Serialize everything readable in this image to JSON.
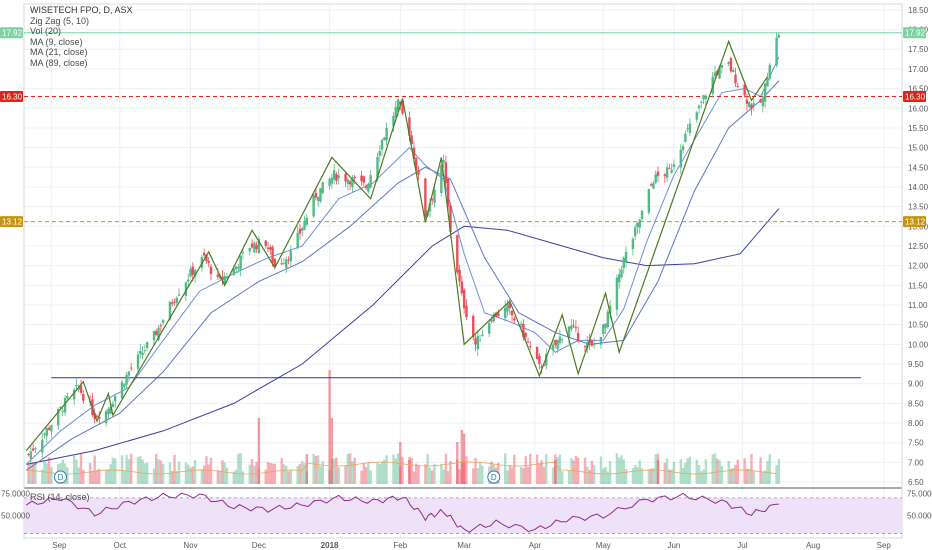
{
  "legend": {
    "title": "WISETECH FPO, D, ASX",
    "lines": [
      "Zig Zag (5, 10)",
      "Vol (20)",
      "MA (9, close)",
      "MA (21, close)",
      "MA (89, close)"
    ],
    "rsi": "RSI (14, close)"
  },
  "colors": {
    "up": "#53b987",
    "down": "#eb4d5c",
    "zigzag": "#4d7a1f",
    "ma9": "#6f8fd8",
    "ma21": "#5f74c8",
    "ma89": "#3c3f9e",
    "support": "#2a36a4",
    "resistance": "#e0241a",
    "mid": "#c79410",
    "current": "#7dd3a4",
    "rsi": "#8e2e8c",
    "rsi_band": "#efe1f7",
    "vol_ma": "#f2a25a"
  },
  "chart_data": {
    "type": "candlestick",
    "title": "WISETECH FPO, D, ASX",
    "price_axis": {
      "ylim": [
        6.4,
        18.65
      ],
      "ticks": [
        "6.50",
        "7.00",
        "7.50",
        "8.00",
        "8.50",
        "9.00",
        "9.50",
        "10.00",
        "10.50",
        "11.00",
        "11.50",
        "12.00",
        "12.50",
        "13.00",
        "13.50",
        "14.00",
        "14.50",
        "15.00",
        "15.50",
        "16.00",
        "16.50",
        "17.00",
        "17.50",
        "18.00",
        "18.50"
      ]
    },
    "time_axis": {
      "labels": [
        "Sep",
        "Oct",
        "Nov",
        "Dec",
        "2018",
        "Feb",
        "Mar",
        "Apr",
        "May",
        "Jun",
        "Jul",
        "Aug",
        "Sep"
      ],
      "label_dates": [
        "2017-09-01",
        "2017-10-01",
        "2017-11-01",
        "2017-12-01",
        "2018-01-01",
        "2018-02-01",
        "2018-03-01",
        "2018-04-01",
        "2018-05-01",
        "2018-06-01",
        "2018-07-01",
        "2018-08-01",
        "2018-09-01"
      ]
    },
    "horizontal_lines": [
      {
        "label": "17.92",
        "value": 17.92,
        "style": "solid",
        "kind": "current"
      },
      {
        "label": "16.30",
        "value": 16.3,
        "style": "dashed",
        "kind": "resistance"
      },
      {
        "label": "13.12",
        "value": 13.12,
        "style": "dashed",
        "kind": "mid"
      },
      {
        "value": 9.15,
        "style": "solid",
        "kind": "support",
        "from": "2017-09-01",
        "to": "2018-08-22"
      }
    ],
    "close_path": [
      {
        "d": "2017-08-22",
        "c": 7.2
      },
      {
        "d": "2017-08-31",
        "c": 7.9
      },
      {
        "d": "2017-09-08",
        "c": 8.6
      },
      {
        "d": "2017-09-13",
        "c": 8.9
      },
      {
        "d": "2017-09-20",
        "c": 8.2
      },
      {
        "d": "2017-09-25",
        "c": 8.3
      },
      {
        "d": "2017-10-06",
        "c": 9.4
      },
      {
        "d": "2017-10-16",
        "c": 10.2
      },
      {
        "d": "2017-10-25",
        "c": 11.2
      },
      {
        "d": "2017-11-01",
        "c": 11.8
      },
      {
        "d": "2017-11-07",
        "c": 12.2
      },
      {
        "d": "2017-11-13",
        "c": 11.6
      },
      {
        "d": "2017-11-20",
        "c": 11.9
      },
      {
        "d": "2017-11-27",
        "c": 12.5
      },
      {
        "d": "2017-12-04",
        "c": 12.6
      },
      {
        "d": "2017-12-08",
        "c": 12.0
      },
      {
        "d": "2017-12-15",
        "c": 12.3
      },
      {
        "d": "2017-12-26",
        "c": 13.8
      },
      {
        "d": "2018-01-03",
        "c": 14.3
      },
      {
        "d": "2018-01-10",
        "c": 14.2
      },
      {
        "d": "2018-01-17",
        "c": 14.0
      },
      {
        "d": "2018-01-24",
        "c": 15.2
      },
      {
        "d": "2018-01-31",
        "c": 16.1
      },
      {
        "d": "2018-02-05",
        "c": 15.4
      },
      {
        "d": "2018-02-12",
        "c": 13.3
      },
      {
        "d": "2018-02-20",
        "c": 14.6
      },
      {
        "d": "2018-02-23",
        "c": 12.9
      },
      {
        "d": "2018-02-28",
        "c": 11.2
      },
      {
        "d": "2018-03-06",
        "c": 10.0
      },
      {
        "d": "2018-03-13",
        "c": 10.7
      },
      {
        "d": "2018-03-20",
        "c": 10.9
      },
      {
        "d": "2018-03-26",
        "c": 10.4
      },
      {
        "d": "2018-04-03",
        "c": 9.4
      },
      {
        "d": "2018-04-09",
        "c": 9.9
      },
      {
        "d": "2018-04-16",
        "c": 10.5
      },
      {
        "d": "2018-04-20",
        "c": 10.2
      },
      {
        "d": "2018-04-26",
        "c": 9.9
      },
      {
        "d": "2018-05-02",
        "c": 10.5
      },
      {
        "d": "2018-05-09",
        "c": 12.0
      },
      {
        "d": "2018-05-16",
        "c": 13.0
      },
      {
        "d": "2018-05-23",
        "c": 14.2
      },
      {
        "d": "2018-05-30",
        "c": 14.4
      },
      {
        "d": "2018-06-06",
        "c": 15.3
      },
      {
        "d": "2018-06-12",
        "c": 16.0
      },
      {
        "d": "2018-06-19",
        "c": 16.9
      },
      {
        "d": "2018-06-25",
        "c": 17.1
      },
      {
        "d": "2018-07-02",
        "c": 16.3
      },
      {
        "d": "2018-07-06",
        "c": 16.0
      },
      {
        "d": "2018-07-10",
        "c": 16.2
      },
      {
        "d": "2018-07-13",
        "c": 17.2
      },
      {
        "d": "2018-07-17",
        "c": 17.92
      }
    ],
    "zigzag": [
      {
        "d": "2017-08-21",
        "v": 7.3
      },
      {
        "d": "2017-09-15",
        "v": 9.05
      },
      {
        "d": "2017-09-21",
        "v": 8.05
      },
      {
        "d": "2017-09-26",
        "v": 8.75
      },
      {
        "d": "2017-09-28",
        "v": 8.2
      },
      {
        "d": "2017-11-09",
        "v": 12.35
      },
      {
        "d": "2017-11-16",
        "v": 11.5
      },
      {
        "d": "2017-11-28",
        "v": 12.9
      },
      {
        "d": "2017-12-08",
        "v": 11.95
      },
      {
        "d": "2018-01-02",
        "v": 14.75
      },
      {
        "d": "2018-01-19",
        "v": 13.7
      },
      {
        "d": "2018-02-02",
        "v": 16.25
      },
      {
        "d": "2018-02-12",
        "v": 13.1
      },
      {
        "d": "2018-02-19",
        "v": 14.75
      },
      {
        "d": "2018-03-01",
        "v": 10.0
      },
      {
        "d": "2018-03-21",
        "v": 11.1
      },
      {
        "d": "2018-04-03",
        "v": 9.2
      },
      {
        "d": "2018-04-13",
        "v": 10.75
      },
      {
        "d": "2018-04-20",
        "v": 9.25
      },
      {
        "d": "2018-05-02",
        "v": 11.3
      },
      {
        "d": "2018-05-08",
        "v": 9.8
      },
      {
        "d": "2018-06-25",
        "v": 17.7
      },
      {
        "d": "2018-07-05",
        "v": 16.2
      },
      {
        "d": "2018-07-12",
        "v": 16.8
      }
    ],
    "ma9": [
      {
        "d": "2017-08-21",
        "v": 6.95
      },
      {
        "d": "2017-09-05",
        "v": 7.8
      },
      {
        "d": "2017-09-20",
        "v": 8.45
      },
      {
        "d": "2017-10-05",
        "v": 8.9
      },
      {
        "d": "2017-10-20",
        "v": 10.1
      },
      {
        "d": "2017-11-05",
        "v": 11.35
      },
      {
        "d": "2017-11-20",
        "v": 11.8
      },
      {
        "d": "2017-12-05",
        "v": 12.2
      },
      {
        "d": "2017-12-20",
        "v": 12.5
      },
      {
        "d": "2018-01-05",
        "v": 13.7
      },
      {
        "d": "2018-01-20",
        "v": 14.1
      },
      {
        "d": "2018-02-05",
        "v": 15.0
      },
      {
        "d": "2018-02-12",
        "v": 14.55
      },
      {
        "d": "2018-02-20",
        "v": 14.2
      },
      {
        "d": "2018-03-01",
        "v": 12.3
      },
      {
        "d": "2018-03-10",
        "v": 10.8
      },
      {
        "d": "2018-03-20",
        "v": 10.6
      },
      {
        "d": "2018-04-01",
        "v": 10.3
      },
      {
        "d": "2018-04-10",
        "v": 9.8
      },
      {
        "d": "2018-04-20",
        "v": 10.1
      },
      {
        "d": "2018-05-01",
        "v": 10.1
      },
      {
        "d": "2018-05-10",
        "v": 10.9
      },
      {
        "d": "2018-05-20",
        "v": 12.6
      },
      {
        "d": "2018-06-01",
        "v": 14.3
      },
      {
        "d": "2018-06-12",
        "v": 15.4
      },
      {
        "d": "2018-06-22",
        "v": 16.4
      },
      {
        "d": "2018-07-02",
        "v": 16.5
      },
      {
        "d": "2018-07-09",
        "v": 16.3
      },
      {
        "d": "2018-07-17",
        "v": 17.3
      }
    ],
    "ma21": [
      {
        "d": "2017-08-21",
        "v": 6.8
      },
      {
        "d": "2017-09-10",
        "v": 7.6
      },
      {
        "d": "2017-10-01",
        "v": 8.25
      },
      {
        "d": "2017-10-20",
        "v": 9.3
      },
      {
        "d": "2017-11-10",
        "v": 10.8
      },
      {
        "d": "2017-12-01",
        "v": 11.6
      },
      {
        "d": "2017-12-20",
        "v": 12.1
      },
      {
        "d": "2018-01-10",
        "v": 13.0
      },
      {
        "d": "2018-01-31",
        "v": 14.1
      },
      {
        "d": "2018-02-12",
        "v": 14.5
      },
      {
        "d": "2018-02-23",
        "v": 14.2
      },
      {
        "d": "2018-03-10",
        "v": 12.2
      },
      {
        "d": "2018-03-25",
        "v": 10.8
      },
      {
        "d": "2018-04-10",
        "v": 10.3
      },
      {
        "d": "2018-04-25",
        "v": 10.0
      },
      {
        "d": "2018-05-10",
        "v": 10.1
      },
      {
        "d": "2018-05-25",
        "v": 11.6
      },
      {
        "d": "2018-06-10",
        "v": 13.9
      },
      {
        "d": "2018-06-25",
        "v": 15.5
      },
      {
        "d": "2018-07-09",
        "v": 16.2
      },
      {
        "d": "2018-07-17",
        "v": 16.7
      }
    ],
    "ma89": [
      {
        "d": "2017-08-21",
        "v": 6.95
      },
      {
        "d": "2017-09-20",
        "v": 7.3
      },
      {
        "d": "2017-10-20",
        "v": 7.8
      },
      {
        "d": "2017-11-20",
        "v": 8.5
      },
      {
        "d": "2017-12-20",
        "v": 9.5
      },
      {
        "d": "2018-01-20",
        "v": 11.0
      },
      {
        "d": "2018-02-15",
        "v": 12.5
      },
      {
        "d": "2018-03-01",
        "v": 13.0
      },
      {
        "d": "2018-03-20",
        "v": 12.9
      },
      {
        "d": "2018-04-10",
        "v": 12.55
      },
      {
        "d": "2018-05-01",
        "v": 12.2
      },
      {
        "d": "2018-05-20",
        "v": 12.0
      },
      {
        "d": "2018-06-10",
        "v": 12.05
      },
      {
        "d": "2018-06-30",
        "v": 12.3
      },
      {
        "d": "2018-07-17",
        "v": 13.45
      }
    ],
    "volume_spikes": [
      {
        "d": "2017-12-01",
        "v": 0.55
      },
      {
        "d": "2018-01-01",
        "v": 0.95
      },
      {
        "d": "2018-01-02",
        "v": 0.55
      },
      {
        "d": "2018-02-01",
        "v": 0.35
      },
      {
        "d": "2018-02-05",
        "v": 0.2
      },
      {
        "d": "2018-02-28",
        "v": 0.45
      },
      {
        "d": "2018-03-01",
        "v": 0.42
      },
      {
        "d": "2018-02-26",
        "v": 0.35
      },
      {
        "d": "2017-12-22",
        "v": 0.25
      },
      {
        "d": "2018-04-10",
        "v": 0.2
      },
      {
        "d": "2018-05-25",
        "v": 0.2
      }
    ],
    "rsi": {
      "ylim": [
        25,
        80
      ],
      "ticks": [
        "75.0000",
        "50.0000"
      ],
      "band": [
        30,
        70
      ],
      "values": [
        {
          "d": "2017-08-21",
          "v": 62
        },
        {
          "d": "2017-09-05",
          "v": 70
        },
        {
          "d": "2017-09-20",
          "v": 52
        },
        {
          "d": "2017-10-05",
          "v": 65
        },
        {
          "d": "2017-10-20",
          "v": 72
        },
        {
          "d": "2017-11-05",
          "v": 73
        },
        {
          "d": "2017-11-20",
          "v": 60
        },
        {
          "d": "2017-12-05",
          "v": 57
        },
        {
          "d": "2017-12-20",
          "v": 62
        },
        {
          "d": "2018-01-05",
          "v": 70
        },
        {
          "d": "2018-01-20",
          "v": 66
        },
        {
          "d": "2018-02-02",
          "v": 71
        },
        {
          "d": "2018-02-12",
          "v": 48
        },
        {
          "d": "2018-02-20",
          "v": 55
        },
        {
          "d": "2018-03-01",
          "v": 33
        },
        {
          "d": "2018-03-15",
          "v": 42
        },
        {
          "d": "2018-04-01",
          "v": 34
        },
        {
          "d": "2018-04-15",
          "v": 46
        },
        {
          "d": "2018-05-01",
          "v": 50
        },
        {
          "d": "2018-05-20",
          "v": 68
        },
        {
          "d": "2018-06-05",
          "v": 72
        },
        {
          "d": "2018-06-22",
          "v": 66
        },
        {
          "d": "2018-07-05",
          "v": 52
        },
        {
          "d": "2018-07-17",
          "v": 63
        }
      ]
    },
    "events": [
      {
        "label": "D",
        "d": "2017-09-05"
      },
      {
        "label": "D",
        "d": "2018-03-14"
      }
    ]
  }
}
